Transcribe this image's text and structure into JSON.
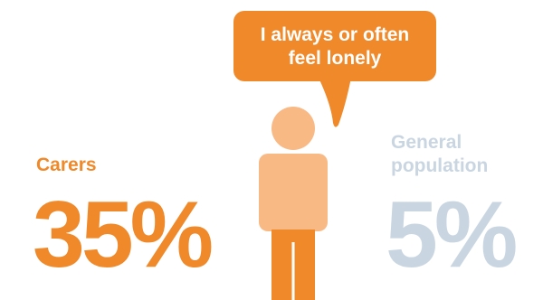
{
  "speech_bubble": {
    "line1": "I always or often",
    "line2": "feel lonely"
  },
  "carers": {
    "label": "Carers",
    "percent": "35%"
  },
  "general_population": {
    "label_line1": "General",
    "label_line2": "population",
    "percent": "5%"
  },
  "colors": {
    "accent": "#f0892a",
    "figure_light": "#f9b985",
    "figure_dark": "#f0892a",
    "muted": "#c9d6e2"
  },
  "icons": {
    "person": "person-icon",
    "bubble_tail": "speech-bubble-tail-icon"
  }
}
